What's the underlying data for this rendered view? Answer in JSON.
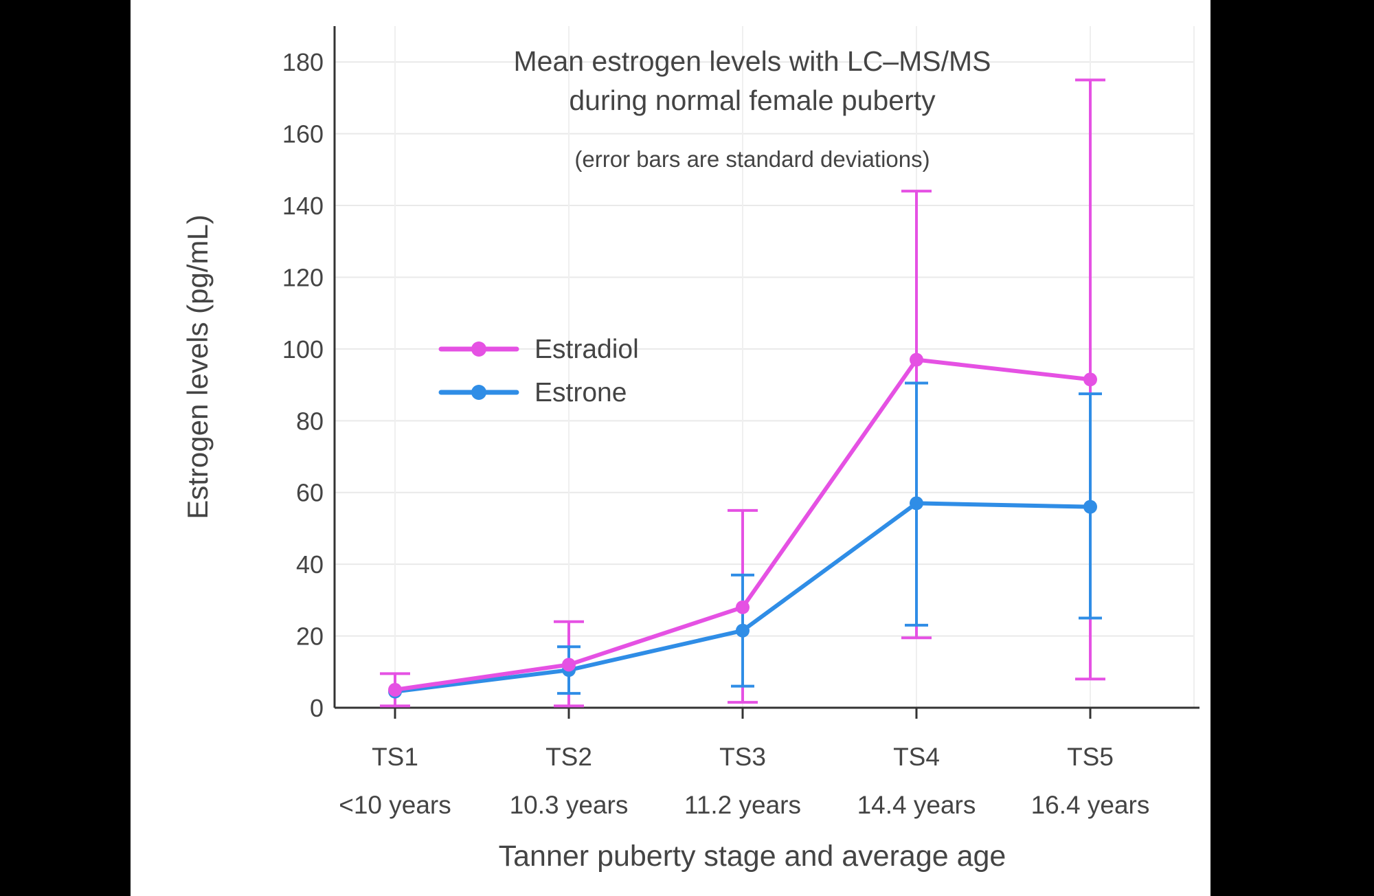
{
  "page": {
    "background_color": "#000000",
    "panel_background_color": "#ffffff",
    "text_color": "#444444",
    "gridline_color": "#e9e9e9",
    "axis_color": "#333333"
  },
  "chart_data": {
    "type": "line",
    "title": "Mean estrogen levels with LC–MS/MS during normal female puberty",
    "title_lines": [
      "Mean estrogen levels with LC–MS/MS",
      "during normal female puberty"
    ],
    "subtitle": "(error bars are standard deviations)",
    "xlabel": "Tanner puberty stage and average age",
    "ylabel": "Estrogen levels (pg/mL)",
    "ylim": [
      0,
      190
    ],
    "yticks": [
      0,
      20,
      40,
      60,
      80,
      100,
      120,
      140,
      160,
      180
    ],
    "grid": true,
    "legend_position": "inside-upper-left",
    "error_bar_meaning": "standard deviations",
    "categories": [
      "TS1",
      "TS2",
      "TS3",
      "TS4",
      "TS5"
    ],
    "category_sublabels": [
      "<10 years",
      "10.3 years",
      "11.2 years",
      "14.4 years",
      "16.4 years"
    ],
    "series": [
      {
        "name": "Estradiol",
        "color": "#e551e3",
        "values": [
          5,
          12,
          28,
          97,
          91.5
        ],
        "error_low": [
          0.5,
          0.5,
          1.5,
          19.5,
          8
        ],
        "error_high": [
          9.5,
          24,
          55,
          144,
          175
        ]
      },
      {
        "name": "Estrone",
        "color": "#2f8de6",
        "values": [
          4.5,
          10.5,
          21.5,
          57,
          56
        ],
        "error_low": [
          null,
          4,
          6,
          23,
          25
        ],
        "error_high": [
          null,
          17,
          37,
          90.5,
          87.5
        ]
      }
    ]
  }
}
